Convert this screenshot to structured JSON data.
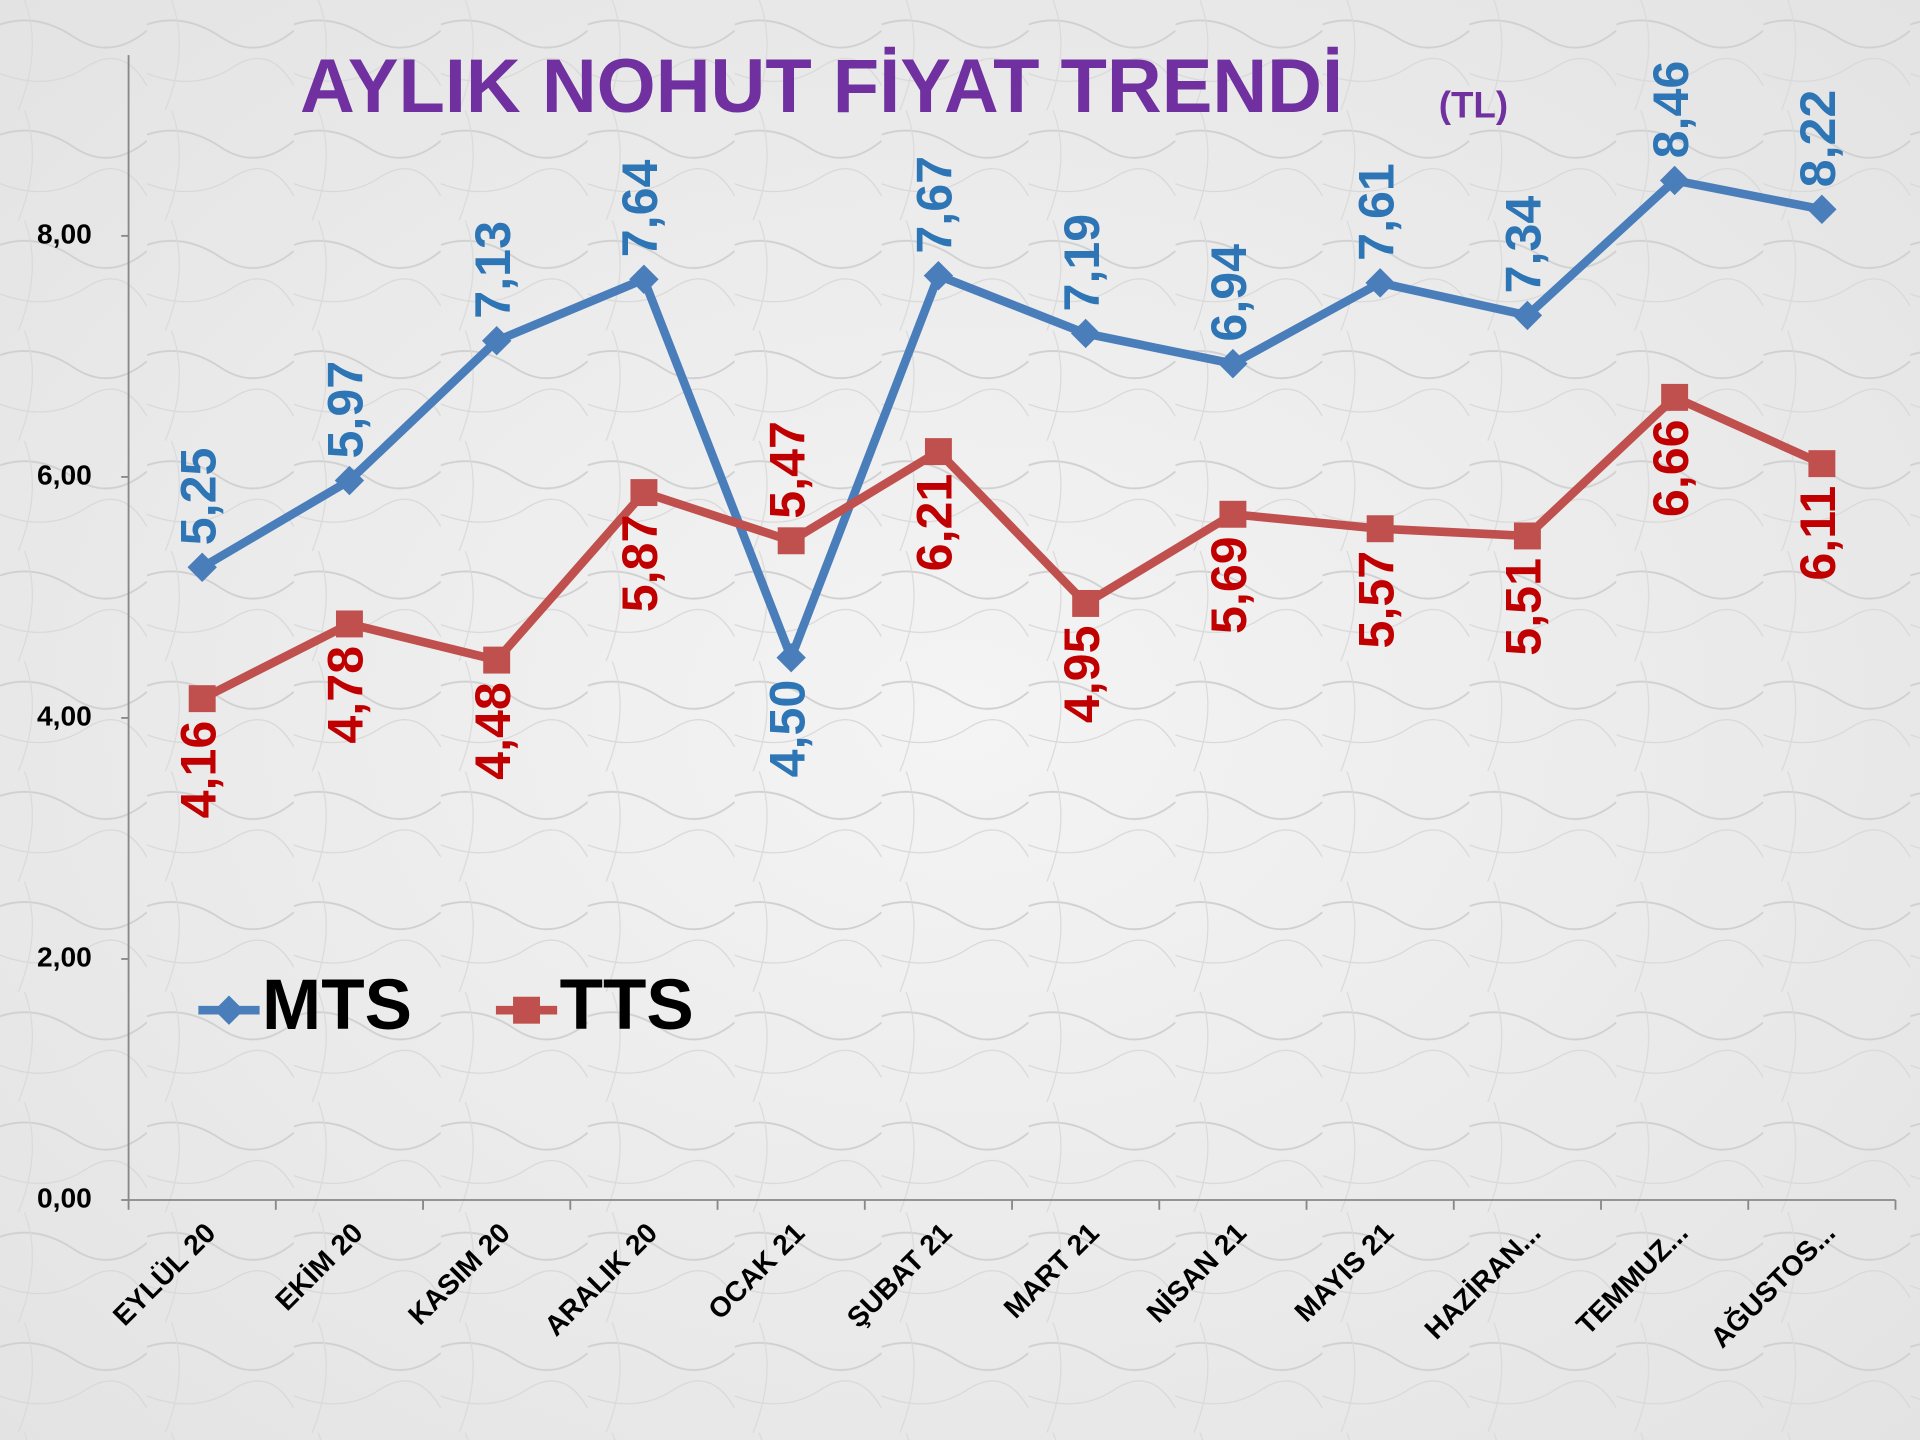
{
  "chart_data": {
    "type": "line",
    "title": "AYLIK NOHUT FİYAT TRENDİ",
    "title_unit": "(TL)",
    "categories": [
      "EYLÜL 20",
      "EKİM 20",
      "KASIM 20",
      "ARALIK 20",
      "OCAK 21",
      "ŞUBAT 21",
      "MART 21",
      "NİSAN 21",
      "MAYIS 21",
      "HAZİRAN...",
      "TEMMUZ...",
      "AĞUSTOS..."
    ],
    "series": [
      {
        "name": "MTS",
        "color": "#4a7ebb",
        "label_color": "#2e75b6",
        "marker": "diamond",
        "values": [
          5.25,
          5.97,
          7.13,
          7.64,
          4.5,
          7.67,
          7.19,
          6.94,
          7.61,
          7.34,
          8.46,
          8.22
        ],
        "value_labels": [
          "5,25",
          "5,97",
          "7,13",
          "7,64",
          "4,50",
          "7,67",
          "7,19",
          "6,94",
          "7,61",
          "7,34",
          "8,46",
          "8,22"
        ]
      },
      {
        "name": "TTS",
        "color": "#c0504d",
        "label_color": "#c00000",
        "marker": "square",
        "values": [
          4.16,
          4.78,
          4.48,
          5.87,
          5.47,
          6.21,
          4.95,
          5.69,
          5.57,
          5.51,
          6.66,
          6.11
        ],
        "value_labels": [
          "4,16",
          "4,78",
          "4,48",
          "5,87",
          "5,47",
          "6,21",
          "4,95",
          "5,69",
          "5,57",
          "5,51",
          "6,66",
          "6,11"
        ]
      }
    ],
    "ylim": [
      0,
      9.5
    ],
    "yticks": [
      {
        "value": 0,
        "label": "0,00"
      },
      {
        "value": 2,
        "label": "2,00"
      },
      {
        "value": 4,
        "label": "4,00"
      },
      {
        "value": 6,
        "label": "6,00"
      },
      {
        "value": 8,
        "label": "8,00"
      }
    ],
    "grid": false,
    "legend": "lower-left"
  }
}
